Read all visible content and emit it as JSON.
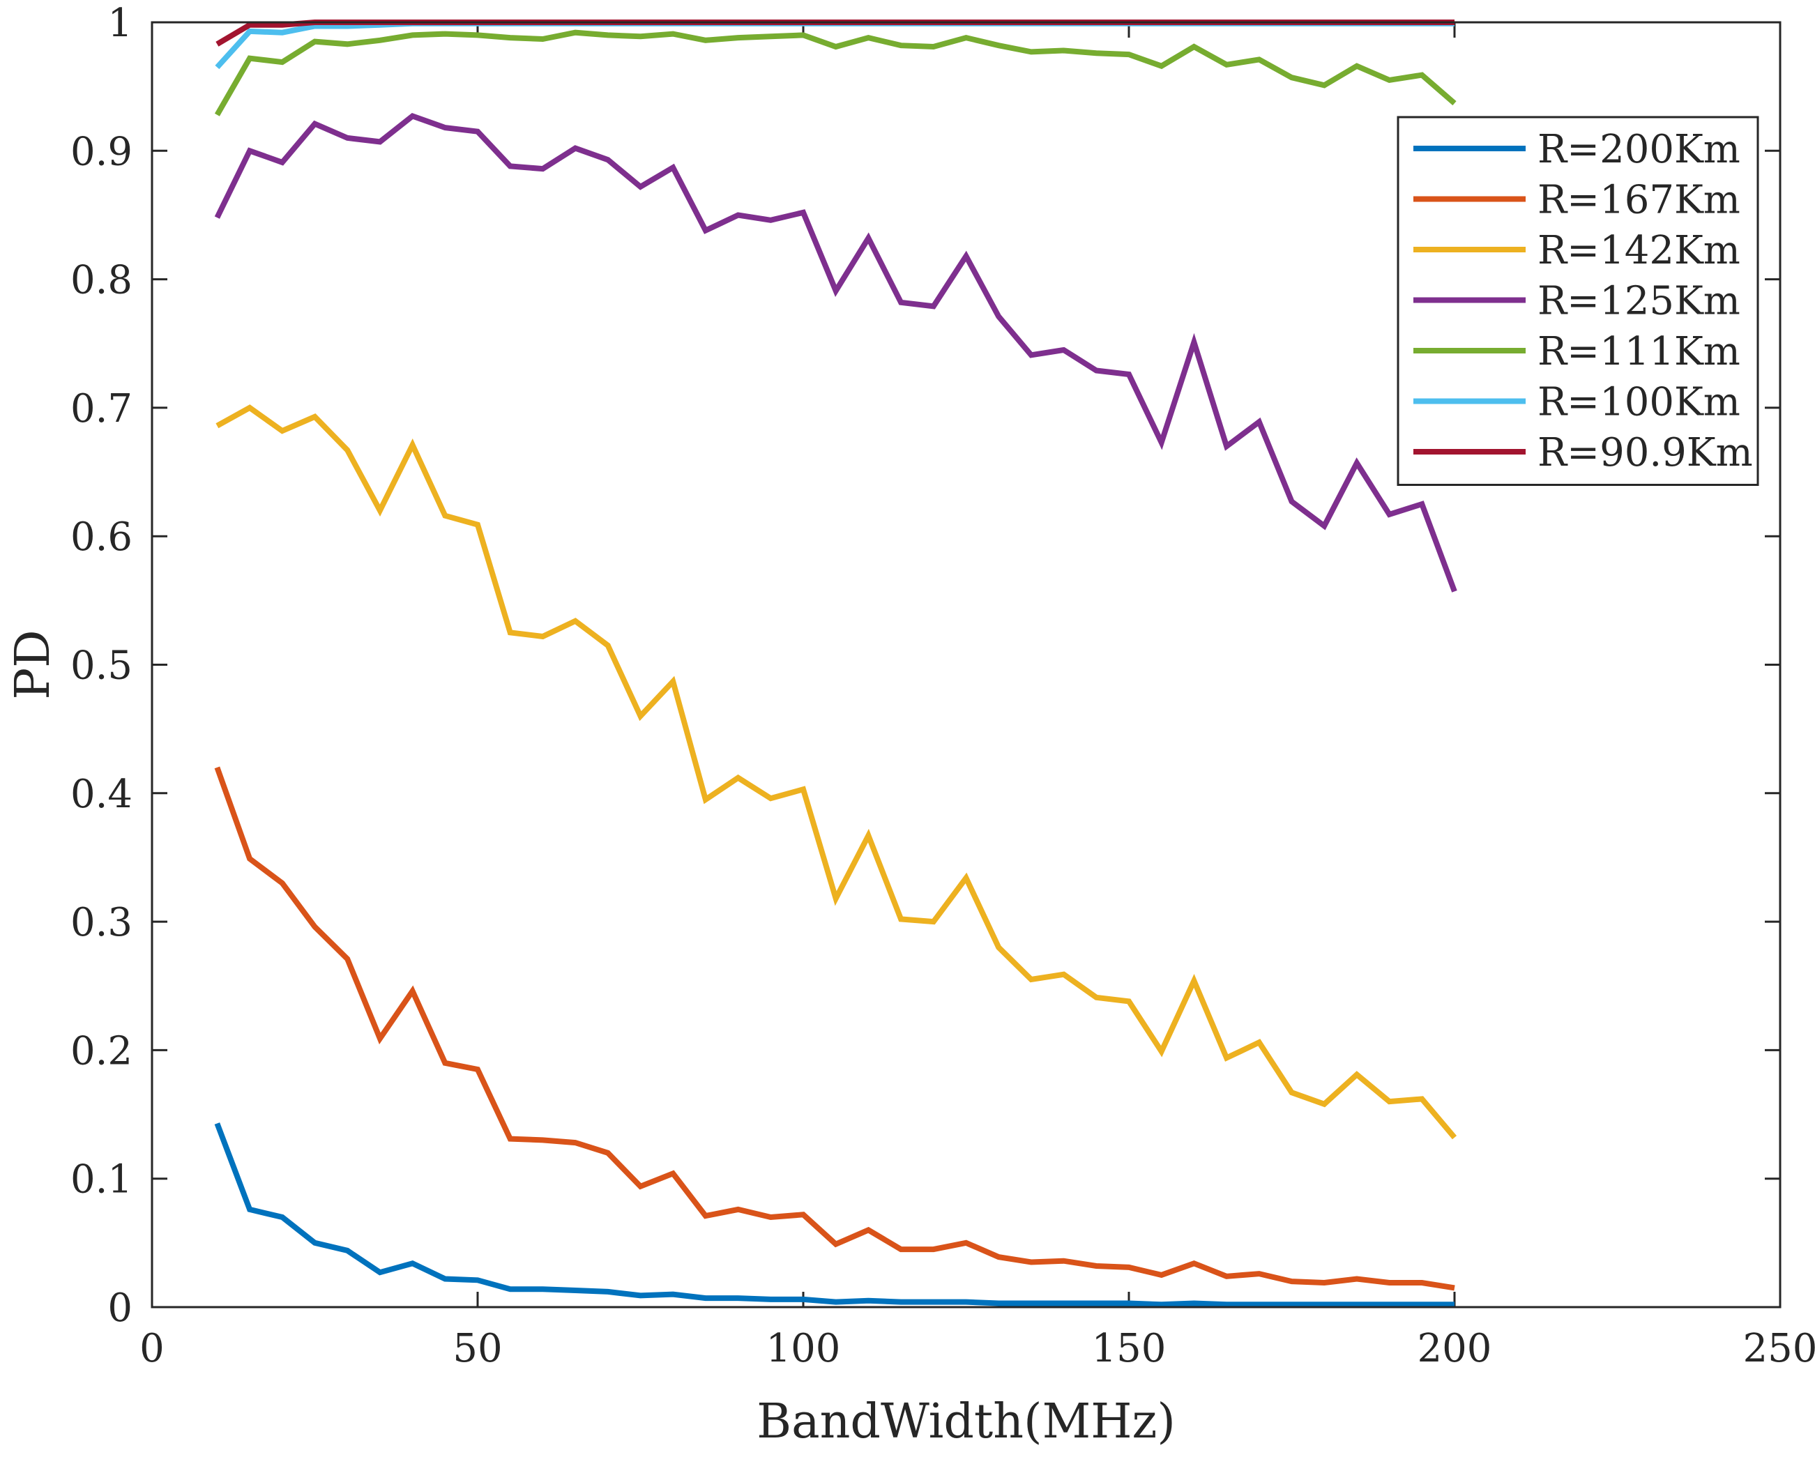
{
  "chart_data": {
    "type": "line",
    "title": "",
    "xlabel": "BandWidth(MHz)",
    "ylabel": "PD",
    "xlim": [
      0,
      250
    ],
    "ylim": [
      0,
      1
    ],
    "xticks": [
      0,
      50,
      100,
      150,
      200,
      250
    ],
    "xtick_labels": [
      "0",
      "50",
      "100",
      "150",
      "200",
      "250"
    ],
    "yticks": [
      0,
      0.1,
      0.2,
      0.3,
      0.4,
      0.5,
      0.6,
      0.7,
      0.8,
      0.9,
      1
    ],
    "ytick_labels": [
      "0",
      "0.1",
      "0.2",
      "0.3",
      "0.4",
      "0.5",
      "0.6",
      "0.7",
      "0.8",
      "0.9",
      "1"
    ],
    "grid": false,
    "legend_position": "top-right",
    "x": [
      10,
      15,
      20,
      25,
      30,
      35,
      40,
      45,
      50,
      55,
      60,
      65,
      70,
      75,
      80,
      85,
      90,
      95,
      100,
      105,
      110,
      115,
      120,
      125,
      130,
      135,
      140,
      145,
      150,
      155,
      160,
      165,
      170,
      175,
      180,
      185,
      190,
      195,
      200
    ],
    "series": [
      {
        "name": "R=200Km",
        "color": "#0072BD",
        "values": [
          0.143,
          0.076,
          0.07,
          0.05,
          0.044,
          0.027,
          0.034,
          0.022,
          0.021,
          0.014,
          0.014,
          0.013,
          0.012,
          0.009,
          0.01,
          0.007,
          0.007,
          0.006,
          0.006,
          0.004,
          0.005,
          0.004,
          0.004,
          0.004,
          0.003,
          0.003,
          0.003,
          0.003,
          0.003,
          0.002,
          0.003,
          0.002,
          0.002,
          0.002,
          0.002,
          0.002,
          0.002,
          0.002,
          0.002
        ]
      },
      {
        "name": "R=167Km",
        "color": "#D95319",
        "values": [
          0.42,
          0.349,
          0.33,
          0.296,
          0.271,
          0.209,
          0.246,
          0.19,
          0.185,
          0.131,
          0.13,
          0.128,
          0.12,
          0.094,
          0.104,
          0.071,
          0.076,
          0.07,
          0.072,
          0.049,
          0.06,
          0.045,
          0.045,
          0.05,
          0.039,
          0.035,
          0.036,
          0.032,
          0.031,
          0.025,
          0.034,
          0.024,
          0.026,
          0.02,
          0.019,
          0.022,
          0.019,
          0.019,
          0.015
        ]
      },
      {
        "name": "R=142Km",
        "color": "#EDB120",
        "values": [
          0.686,
          0.7,
          0.682,
          0.693,
          0.667,
          0.62,
          0.671,
          0.616,
          0.609,
          0.525,
          0.522,
          0.534,
          0.515,
          0.46,
          0.487,
          0.395,
          0.412,
          0.396,
          0.403,
          0.318,
          0.367,
          0.302,
          0.3,
          0.334,
          0.28,
          0.255,
          0.259,
          0.241,
          0.238,
          0.199,
          0.254,
          0.194,
          0.206,
          0.167,
          0.158,
          0.181,
          0.16,
          0.162,
          0.132
        ]
      },
      {
        "name": "R=125Km",
        "color": "#7E2F8E",
        "values": [
          0.848,
          0.9,
          0.891,
          0.921,
          0.91,
          0.907,
          0.927,
          0.918,
          0.915,
          0.888,
          0.886,
          0.902,
          0.893,
          0.872,
          0.887,
          0.838,
          0.85,
          0.846,
          0.852,
          0.791,
          0.832,
          0.782,
          0.779,
          0.818,
          0.771,
          0.741,
          0.745,
          0.729,
          0.726,
          0.673,
          0.751,
          0.67,
          0.689,
          0.627,
          0.608,
          0.657,
          0.617,
          0.625,
          0.557
        ]
      },
      {
        "name": "R=111Km",
        "color": "#77AC30",
        "values": [
          0.928,
          0.972,
          0.969,
          0.985,
          0.983,
          0.986,
          0.99,
          0.991,
          0.99,
          0.988,
          0.987,
          0.992,
          0.99,
          0.989,
          0.991,
          0.986,
          0.988,
          0.989,
          0.99,
          0.981,
          0.988,
          0.982,
          0.981,
          0.988,
          0.982,
          0.977,
          0.978,
          0.976,
          0.975,
          0.966,
          0.981,
          0.967,
          0.971,
          0.957,
          0.951,
          0.966,
          0.955,
          0.959,
          0.937
        ]
      },
      {
        "name": "R=100Km",
        "color": "#4DBEEE",
        "values": [
          0.965,
          0.993,
          0.992,
          0.997,
          0.997,
          0.998,
          0.999,
          0.999,
          0.999,
          0.999,
          0.999,
          0.999,
          0.999,
          0.999,
          0.999,
          0.999,
          0.999,
          0.999,
          0.999,
          0.999,
          0.999,
          0.999,
          0.999,
          0.999,
          0.999,
          0.999,
          0.999,
          0.999,
          0.999,
          0.999,
          0.999,
          0.999,
          0.999,
          0.999,
          0.999,
          0.999,
          0.999,
          0.999,
          0.999
        ]
      },
      {
        "name": "R=90.9Km",
        "color": "#A2142F",
        "values": [
          0.983,
          0.998,
          0.998,
          1.0,
          1.0,
          1.0,
          1.0,
          1.0,
          1.0,
          1.0,
          1.0,
          1.0,
          1.0,
          1.0,
          1.0,
          1.0,
          1.0,
          1.0,
          1.0,
          1.0,
          1.0,
          1.0,
          1.0,
          1.0,
          1.0,
          1.0,
          1.0,
          1.0,
          1.0,
          1.0,
          1.0,
          1.0,
          1.0,
          1.0,
          1.0,
          1.0,
          1.0,
          1.0,
          1.0
        ]
      }
    ]
  }
}
